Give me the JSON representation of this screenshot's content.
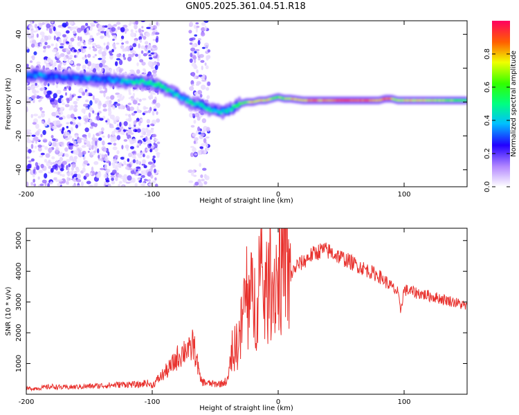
{
  "title": "GN05.2025.361.04.51.R18",
  "chart_data": [
    {
      "type": "heatmap",
      "xlabel": "Height of straight line (km)",
      "ylabel": "Frequency (Hz)",
      "xlim": [
        -200,
        150
      ],
      "ylim": [
        -50,
        48
      ],
      "xticks": [
        -200,
        -100,
        0,
        100
      ],
      "yticks": [
        -40,
        -20,
        0,
        20,
        40
      ],
      "xtick_labels": [
        "-200",
        "-100",
        "0",
        "100"
      ],
      "ytick_labels": [
        "-40",
        "-20",
        "0",
        "20",
        "40"
      ],
      "colorbar": {
        "label": "Normalized spectral amplitude",
        "range": [
          0,
          1
        ],
        "ticks": [
          0.0,
          0.2,
          0.4,
          0.6,
          0.8
        ],
        "tick_labels": [
          "0.0",
          "0.2",
          "0.4",
          "0.6",
          "0.8"
        ]
      },
      "ridge": {
        "x": [
          -200,
          -190,
          -180,
          -170,
          -160,
          -150,
          -140,
          -130,
          -120,
          -110,
          -100,
          -95,
          -90,
          -85,
          -80,
          -75,
          -70,
          -65,
          -60,
          -55,
          -50,
          -45,
          -40,
          -35,
          -30,
          -25,
          -20,
          -15,
          -10,
          -5,
          0,
          5,
          10,
          20,
          40,
          60,
          80,
          85,
          90,
          95,
          100,
          120,
          150
        ],
        "y": [
          16,
          16,
          15,
          15,
          14,
          14,
          13,
          13,
          12,
          12,
          11,
          10,
          8,
          6,
          4,
          2,
          0,
          -1,
          -2,
          -4,
          -5,
          -6,
          -5,
          -3,
          -1,
          0,
          0,
          1,
          1,
          2,
          3,
          2,
          2,
          1,
          1,
          1,
          1,
          2,
          2,
          1,
          1,
          1,
          1
        ],
        "amplitude": [
          0.35,
          0.35,
          0.3,
          0.3,
          0.3,
          0.35,
          0.3,
          0.35,
          0.4,
          0.45,
          0.45,
          0.5,
          0.5,
          0.45,
          0.45,
          0.4,
          0.45,
          0.45,
          0.45,
          0.45,
          0.4,
          0.4,
          0.4,
          0.5,
          0.6,
          0.65,
          0.75,
          0.8,
          0.75,
          0.7,
          0.65,
          0.7,
          0.75,
          0.8,
          0.85,
          0.9,
          0.8,
          0.9,
          0.8,
          0.7,
          0.75,
          0.75,
          0.6
        ]
      },
      "noise_region_x": [
        -200,
        -95
      ],
      "noise_band_x": [
        -70,
        -55
      ]
    },
    {
      "type": "line",
      "xlabel": "Height of straight line (km)",
      "ylabel": "SNR (10 * v/v)",
      "xlim": [
        -200,
        150
      ],
      "ylim": [
        0,
        5400
      ],
      "xticks": [
        -200,
        -100,
        0,
        100
      ],
      "yticks": [
        1000,
        2000,
        3000,
        4000,
        5000
      ],
      "xtick_labels": [
        "-200",
        "-100",
        "0",
        "100"
      ],
      "ytick_labels": [
        "1000",
        "2000",
        "3000",
        "4000",
        "5000"
      ],
      "color": "#e8302c",
      "series": [
        {
          "name": "SNR",
          "x": [
            -200,
            -190,
            -180,
            -170,
            -160,
            -150,
            -140,
            -130,
            -120,
            -110,
            -105,
            -100,
            -95,
            -90,
            -85,
            -80,
            -75,
            -72,
            -70,
            -68,
            -65,
            -62,
            -60,
            -55,
            -50,
            -45,
            -40,
            -38,
            -35,
            -32,
            -30,
            -28,
            -26,
            -24,
            -22,
            -20,
            -18,
            -16,
            -15,
            -14,
            -12,
            -10,
            -8,
            -6,
            -4,
            -2,
            0,
            2,
            4,
            6,
            8,
            10,
            12,
            15,
            20,
            25,
            30,
            35,
            40,
            50,
            60,
            70,
            80,
            90,
            95,
            97,
            100,
            110,
            120,
            130,
            140,
            150
          ],
          "y": [
            180,
            200,
            250,
            220,
            240,
            260,
            280,
            300,
            330,
            300,
            380,
            280,
            500,
            700,
            900,
            1200,
            1400,
            1550,
            1300,
            1700,
            1200,
            500,
            400,
            350,
            330,
            350,
            450,
            1000,
            1400,
            1700,
            1900,
            2600,
            3200,
            2600,
            3000,
            3200,
            2800,
            3600,
            4000,
            3200,
            3500,
            3100,
            3400,
            3700,
            3500,
            3900,
            3800,
            4000,
            4200,
            5100,
            3400,
            3900,
            4000,
            4200,
            4300,
            4500,
            4600,
            4700,
            4650,
            4450,
            4250,
            4050,
            3850,
            3500,
            3300,
            2700,
            3400,
            3300,
            3200,
            3100,
            3000,
            2850
          ]
        }
      ]
    }
  ]
}
